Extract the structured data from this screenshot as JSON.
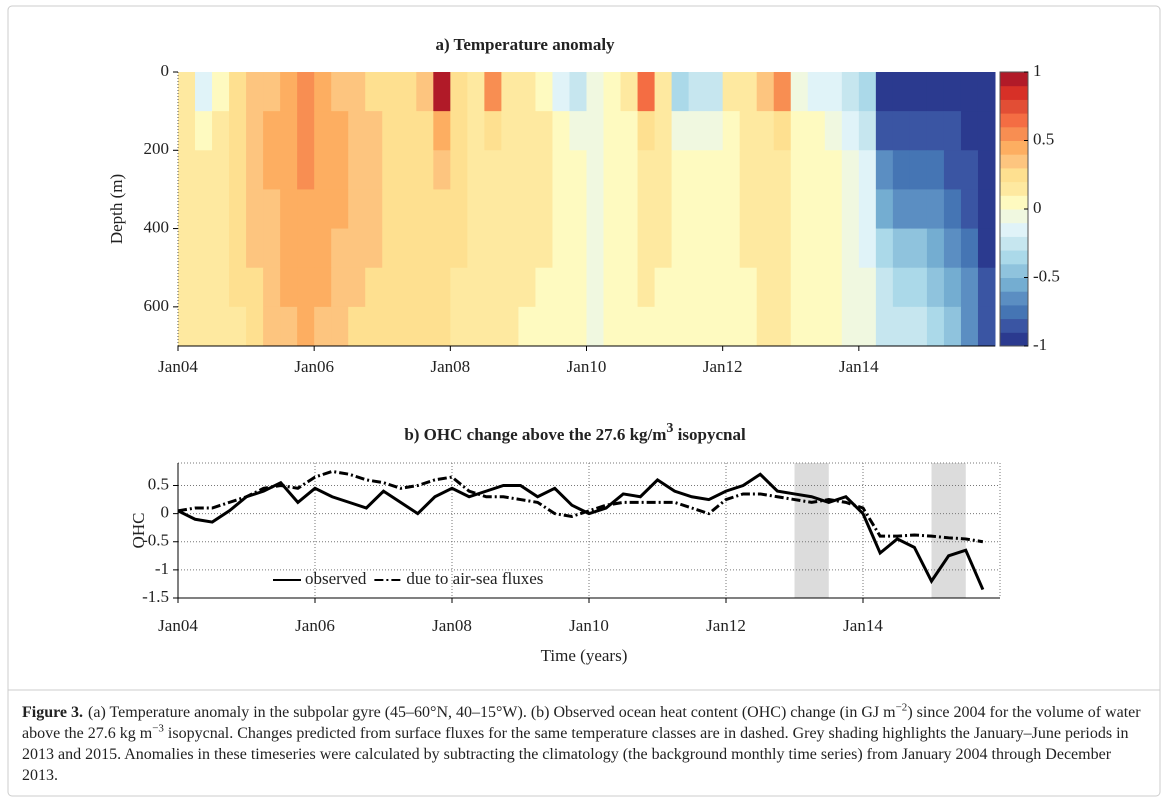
{
  "chart_data": [
    {
      "type": "heatmap",
      "title": "a) Temperature anomaly",
      "ylabel": "Depth (m)",
      "x": [
        2004,
        2004.25,
        2004.5,
        2004.75,
        2005,
        2005.25,
        2005.5,
        2005.75,
        2006,
        2006.25,
        2006.5,
        2006.75,
        2007,
        2007.25,
        2007.5,
        2007.75,
        2008,
        2008.25,
        2008.5,
        2008.75,
        2009,
        2009.25,
        2009.5,
        2009.75,
        2010,
        2010.25,
        2010.5,
        2010.75,
        2011,
        2011.25,
        2011.5,
        2011.75,
        2012,
        2012.25,
        2012.5,
        2012.75,
        2013,
        2013.25,
        2013.5,
        2013.75,
        2014,
        2014.25,
        2014.5,
        2014.75,
        2015,
        2015.25,
        2015.5,
        2015.75
      ],
      "y": [
        50,
        150,
        250,
        350,
        450,
        550,
        650
      ],
      "z": [
        [
          0.1,
          -0.2,
          0.05,
          0.2,
          0.3,
          0.35,
          0.4,
          0.5,
          0.4,
          0.35,
          0.3,
          0.25,
          0.2,
          0.2,
          0.3,
          0.9,
          0.2,
          0.1,
          0.5,
          0.1,
          0.1,
          0.05,
          -0.2,
          -0.3,
          -0.1,
          0,
          0.1,
          0.6,
          0.1,
          -0.4,
          -0.3,
          -0.3,
          0.1,
          0.15,
          0.3,
          0.5,
          -0.1,
          -0.2,
          -0.2,
          -0.3,
          -0.4,
          -0.9,
          -0.95,
          -0.9,
          -0.9,
          -0.95,
          -0.95,
          -1
        ],
        [
          0.15,
          0,
          0.1,
          0.2,
          0.35,
          0.4,
          0.45,
          0.5,
          0.45,
          0.4,
          0.35,
          0.3,
          0.25,
          0.2,
          0.25,
          0.4,
          0.2,
          0.15,
          0.2,
          0.1,
          0.1,
          0.1,
          0,
          -0.1,
          -0.05,
          0,
          0.05,
          0.2,
          0.1,
          -0.1,
          -0.1,
          -0.1,
          0.05,
          0.1,
          0.15,
          0.2,
          0,
          0,
          -0.05,
          -0.15,
          -0.3,
          -0.8,
          -0.85,
          -0.85,
          -0.8,
          -0.85,
          -0.9,
          -0.95
        ],
        [
          0.15,
          0.1,
          0.1,
          0.2,
          0.3,
          0.4,
          0.45,
          0.5,
          0.45,
          0.4,
          0.35,
          0.3,
          0.25,
          0.2,
          0.2,
          0.3,
          0.2,
          0.15,
          0.15,
          0.1,
          0.1,
          0.1,
          0.05,
          0,
          -0.05,
          0,
          0.05,
          0.1,
          0.1,
          0.05,
          0,
          0,
          0.05,
          0.1,
          0.1,
          0.15,
          0.05,
          0.05,
          0,
          -0.1,
          -0.2,
          -0.7,
          -0.75,
          -0.75,
          -0.75,
          -0.8,
          -0.85,
          -0.95
        ],
        [
          0.15,
          0.15,
          0.1,
          0.2,
          0.3,
          0.35,
          0.4,
          0.45,
          0.4,
          0.4,
          0.35,
          0.3,
          0.25,
          0.2,
          0.2,
          0.25,
          0.2,
          0.15,
          0.15,
          0.1,
          0.1,
          0.1,
          0.05,
          0,
          -0.05,
          0,
          0.05,
          0.1,
          0.1,
          0.05,
          0.05,
          0.05,
          0.05,
          0.1,
          0.1,
          0.1,
          0.05,
          0.05,
          0,
          -0.1,
          -0.15,
          -0.55,
          -0.65,
          -0.65,
          -0.7,
          -0.75,
          -0.8,
          -0.9
        ],
        [
          0.15,
          0.15,
          0.1,
          0.2,
          0.3,
          0.35,
          0.4,
          0.45,
          0.4,
          0.35,
          0.3,
          0.3,
          0.25,
          0.2,
          0.2,
          0.25,
          0.2,
          0.15,
          0.15,
          0.1,
          0.1,
          0.1,
          0.05,
          0,
          -0.05,
          0,
          0.05,
          0.1,
          0.1,
          0.05,
          0.05,
          0.05,
          0.05,
          0.1,
          0.1,
          0.1,
          0.05,
          0.05,
          0,
          -0.1,
          -0.15,
          -0.4,
          -0.5,
          -0.5,
          -0.55,
          -0.65,
          -0.75,
          -0.9
        ],
        [
          0.15,
          0.15,
          0.1,
          0.2,
          0.25,
          0.3,
          0.4,
          0.45,
          0.4,
          0.35,
          0.3,
          0.25,
          0.2,
          0.2,
          0.2,
          0.2,
          0.15,
          0.15,
          0.1,
          0.1,
          0.1,
          0.05,
          0.05,
          0,
          -0.05,
          0,
          0.05,
          0.1,
          0.05,
          0.05,
          0.05,
          0.05,
          0.05,
          0.05,
          0.1,
          0.1,
          0.05,
          0,
          0,
          -0.1,
          -0.1,
          -0.3,
          -0.35,
          -0.4,
          -0.45,
          -0.55,
          -0.7,
          -0.85
        ],
        [
          0.15,
          0.15,
          0.1,
          0.15,
          0.25,
          0.3,
          0.35,
          0.4,
          0.35,
          0.3,
          0.25,
          0.25,
          0.2,
          0.2,
          0.2,
          0.2,
          0.15,
          0.1,
          0.1,
          0.1,
          0.05,
          0.05,
          0,
          0,
          -0.05,
          0,
          0.05,
          0.05,
          0.05,
          0.05,
          0.05,
          0.05,
          0.05,
          0.05,
          0.1,
          0.1,
          0.05,
          0,
          0,
          -0.05,
          -0.1,
          -0.25,
          -0.3,
          -0.3,
          -0.35,
          -0.5,
          -0.65,
          -0.8
        ]
      ],
      "xlim": [
        2004,
        2016
      ],
      "xticks": [
        {
          "value": 2004,
          "label": "Jan04"
        },
        {
          "value": 2006,
          "label": "Jan06"
        },
        {
          "value": 2008,
          "label": "Jan08"
        },
        {
          "value": 2010,
          "label": "Jan10"
        },
        {
          "value": 2012,
          "label": "Jan12"
        },
        {
          "value": 2014,
          "label": "Jan14"
        }
      ],
      "ylim": [
        0,
        700
      ],
      "y_inverted": true,
      "yticks": [
        0,
        200,
        400,
        600
      ],
      "clim": [
        -1,
        1
      ],
      "cticks": [
        1,
        0.5,
        0,
        -0.5,
        -1
      ],
      "colorscale": [
        "#2b3a8f",
        "#3a55a3",
        "#4575b4",
        "#5b8ec2",
        "#74add1",
        "#8fc3dd",
        "#abd9e9",
        "#c6e6ef",
        "#e0f3f8",
        "#f0f8e0",
        "#fefac0",
        "#fee9a0",
        "#fee090",
        "#fdc57f",
        "#fdae61",
        "#f88e52",
        "#f46d43",
        "#e24e35",
        "#d73027",
        "#b11a28"
      ]
    },
    {
      "type": "line",
      "title": [
        "b) OHC change above the 27.6 kg/m",
        "3",
        " isopycnal"
      ],
      "xlabel": "Time (years)",
      "ylabel": "OHC",
      "x": [
        2004,
        2004.25,
        2004.5,
        2004.75,
        2005,
        2005.25,
        2005.5,
        2005.75,
        2006,
        2006.25,
        2006.5,
        2006.75,
        2007,
        2007.25,
        2007.5,
        2007.75,
        2008,
        2008.25,
        2008.5,
        2008.75,
        2009,
        2009.25,
        2009.5,
        2009.75,
        2010,
        2010.25,
        2010.5,
        2010.75,
        2011,
        2011.25,
        2011.5,
        2011.75,
        2012,
        2012.25,
        2012.5,
        2012.75,
        2013,
        2013.25,
        2013.5,
        2013.75,
        2014,
        2014.25,
        2014.5,
        2014.75,
        2015,
        2015.25,
        2015.5,
        2015.75
      ],
      "series": [
        {
          "name": "observed",
          "color": "#000000",
          "dash": "solid",
          "values": [
            0.05,
            -0.1,
            -0.15,
            0.05,
            0.3,
            0.4,
            0.55,
            0.2,
            0.45,
            0.3,
            0.2,
            0.1,
            0.4,
            0.2,
            0,
            0.3,
            0.45,
            0.3,
            0.4,
            0.5,
            0.5,
            0.3,
            0.45,
            0.15,
            0,
            0.1,
            0.35,
            0.3,
            0.6,
            0.4,
            0.3,
            0.25,
            0.4,
            0.5,
            0.7,
            0.4,
            0.35,
            0.3,
            0.2,
            0.3,
            0,
            -0.7,
            -0.45,
            -0.6,
            -1.2,
            -0.75,
            -0.65,
            -1.35
          ]
        },
        {
          "name": "due to air-sea fluxes",
          "color": "#000000",
          "dash": "dashdot",
          "values": [
            0.05,
            0.1,
            0.1,
            0.2,
            0.3,
            0.45,
            0.5,
            0.45,
            0.65,
            0.75,
            0.7,
            0.6,
            0.55,
            0.45,
            0.5,
            0.6,
            0.65,
            0.4,
            0.3,
            0.3,
            0.25,
            0.2,
            0,
            -0.05,
            0.05,
            0.15,
            0.2,
            0.2,
            0.2,
            0.2,
            0.1,
            0,
            0.25,
            0.35,
            0.35,
            0.3,
            0.25,
            0.2,
            0.25,
            0.2,
            0.1,
            -0.4,
            -0.4,
            -0.38,
            -0.4,
            -0.43,
            -0.45,
            -0.5
          ]
        }
      ],
      "shaded_spans": [
        [
          2013,
          2013.5
        ],
        [
          2015,
          2015.5
        ]
      ],
      "xlim": [
        2004,
        2016
      ],
      "xticks": [
        {
          "value": 2004,
          "label": "Jan04"
        },
        {
          "value": 2006,
          "label": "Jan06"
        },
        {
          "value": 2008,
          "label": "Jan08"
        },
        {
          "value": 2010,
          "label": "Jan10"
        },
        {
          "value": 2012,
          "label": "Jan12"
        },
        {
          "value": 2014,
          "label": "Jan14"
        }
      ],
      "ylim": [
        -1.5,
        0.9
      ],
      "yticks": [
        0.5,
        0,
        -0.5,
        -1,
        -1.5
      ],
      "grid": true,
      "legend": "lower left"
    }
  ],
  "caption": {
    "label": "Figure 3.",
    "runs": [
      "(a) Temperature anomaly in the subpolar gyre (45–60°N, 40–15°W). (b) Observed ocean heat content (OHC) change (in GJ m",
      "−2",
      ") since 2004 for the volume of water above the 27.6 kg m",
      "−3",
      " isopycnal. Changes predicted from surface fluxes for the same temperature classes are in dashed. Grey shading highlights the January–June periods in 2013 and 2015. Anomalies in these timeseries were calculated by subtracting the climatology (the background monthly time series) from January 2004 through December 2013."
    ]
  }
}
